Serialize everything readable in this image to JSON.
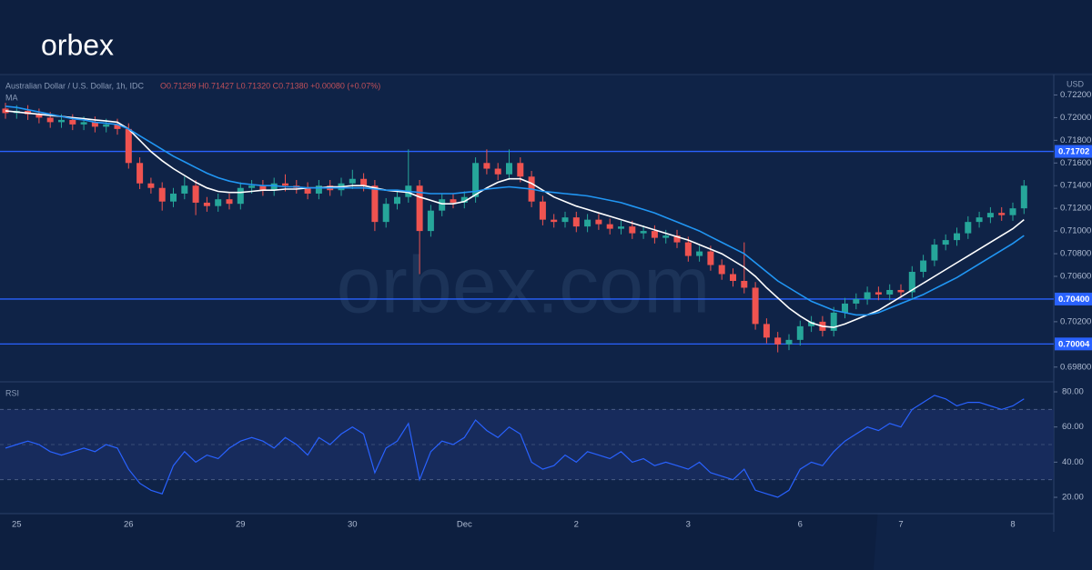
{
  "logo": "orbex",
  "watermark": "orbex.com",
  "chart_data": [
    {
      "type": "candlestick",
      "title": "Australian Dollar / U.S. Dollar, 1h, IDC",
      "ohlc_text": "O0.71299 H0.71427 L0.71320 C0.71380 +0.00080 (+0.07%)",
      "ma_label": "MA",
      "currency": "USD",
      "up_color": "#26a69a",
      "down_color": "#ef5350",
      "categories": [
        null,
        "25",
        null,
        null,
        null,
        null,
        null,
        null,
        null,
        null,
        null,
        "26",
        null,
        null,
        null,
        null,
        null,
        null,
        null,
        null,
        null,
        "29",
        null,
        null,
        null,
        null,
        null,
        null,
        null,
        null,
        null,
        "30",
        null,
        null,
        null,
        null,
        null,
        null,
        null,
        null,
        null,
        "Dec",
        null,
        null,
        null,
        null,
        null,
        null,
        null,
        null,
        null,
        "2",
        null,
        null,
        null,
        null,
        null,
        null,
        null,
        null,
        null,
        "3",
        null,
        null,
        null,
        null,
        null,
        null,
        null,
        null,
        null,
        "6",
        null,
        null,
        null,
        null,
        null,
        null,
        null,
        null,
        "7",
        null,
        null,
        null,
        null,
        null,
        null,
        null,
        null,
        null,
        "8",
        null
      ],
      "open": [
        0.7208,
        0.7204,
        0.7206,
        0.7203,
        0.72,
        0.7196,
        0.7198,
        0.7194,
        0.7196,
        0.7192,
        0.7194,
        0.719,
        0.716,
        0.7142,
        0.7138,
        0.7126,
        0.7133,
        0.714,
        0.7125,
        0.7122,
        0.7128,
        0.7124,
        0.7138,
        0.714,
        0.7136,
        0.7142,
        0.714,
        0.7138,
        0.7133,
        0.714,
        0.7136,
        0.7142,
        0.7146,
        0.714,
        0.7108,
        0.7124,
        0.713,
        0.714,
        0.71,
        0.7118,
        0.7128,
        0.7125,
        0.713,
        0.716,
        0.7155,
        0.715,
        0.716,
        0.7148,
        0.7126,
        0.711,
        0.7108,
        0.7112,
        0.7104,
        0.711,
        0.7106,
        0.7102,
        0.7104,
        0.7098,
        0.71,
        0.7094,
        0.7096,
        0.709,
        0.7078,
        0.7082,
        0.707,
        0.7062,
        0.7056,
        0.705,
        0.7018,
        0.7006,
        0.7,
        0.7004,
        0.7016,
        0.702,
        0.7012,
        0.7028,
        0.7036,
        0.704,
        0.7046,
        0.7044,
        0.7048,
        0.7046,
        0.7064,
        0.7074,
        0.7088,
        0.7092,
        0.7098,
        0.7108,
        0.7112,
        0.7116,
        0.7114,
        0.712
      ],
      "high": [
        0.7213,
        0.7211,
        0.7211,
        0.7208,
        0.7205,
        0.7203,
        0.7203,
        0.7201,
        0.7201,
        0.7199,
        0.7199,
        0.7195,
        0.7165,
        0.7147,
        0.7143,
        0.7138,
        0.7148,
        0.7145,
        0.713,
        0.7133,
        0.7133,
        0.7143,
        0.7145,
        0.7145,
        0.7147,
        0.715,
        0.7145,
        0.7143,
        0.7145,
        0.7145,
        0.7147,
        0.7154,
        0.7151,
        0.7145,
        0.7129,
        0.7135,
        0.7172,
        0.7145,
        0.7123,
        0.7133,
        0.7133,
        0.7135,
        0.7165,
        0.7172,
        0.716,
        0.7172,
        0.7165,
        0.7153,
        0.7131,
        0.7115,
        0.7117,
        0.7117,
        0.7115,
        0.7115,
        0.7111,
        0.7109,
        0.7109,
        0.7105,
        0.7105,
        0.7101,
        0.7101,
        0.7095,
        0.7087,
        0.7087,
        0.7075,
        0.7067,
        0.709,
        0.7055,
        0.7023,
        0.7011,
        0.7009,
        0.7021,
        0.7025,
        0.7025,
        0.7033,
        0.7041,
        0.7045,
        0.7051,
        0.7051,
        0.7053,
        0.7053,
        0.7069,
        0.7079,
        0.7093,
        0.7097,
        0.7103,
        0.7113,
        0.7117,
        0.7121,
        0.7121,
        0.7125,
        0.7145
      ],
      "low": [
        0.7199,
        0.7199,
        0.7198,
        0.7195,
        0.7191,
        0.7191,
        0.7189,
        0.7189,
        0.7187,
        0.7187,
        0.7185,
        0.7155,
        0.7137,
        0.7133,
        0.7118,
        0.7121,
        0.7128,
        0.7114,
        0.7117,
        0.7117,
        0.7119,
        0.7119,
        0.7133,
        0.7131,
        0.7131,
        0.7135,
        0.7133,
        0.7128,
        0.7128,
        0.7131,
        0.7131,
        0.7137,
        0.7135,
        0.71,
        0.7103,
        0.7119,
        0.7125,
        0.7062,
        0.7095,
        0.7113,
        0.712,
        0.712,
        0.7125,
        0.715,
        0.7145,
        0.7145,
        0.7143,
        0.7121,
        0.7105,
        0.7103,
        0.7103,
        0.7099,
        0.7099,
        0.7101,
        0.7097,
        0.7097,
        0.7093,
        0.7093,
        0.7089,
        0.7089,
        0.7085,
        0.7073,
        0.7073,
        0.7065,
        0.7057,
        0.7051,
        0.7045,
        0.7013,
        0.7001,
        0.6993,
        0.6995,
        0.6999,
        0.7011,
        0.7007,
        0.7007,
        0.7023,
        0.7031,
        0.7035,
        0.7039,
        0.7039,
        0.7041,
        0.7041,
        0.7059,
        0.7069,
        0.7083,
        0.7087,
        0.7093,
        0.7103,
        0.7107,
        0.7109,
        0.7109,
        0.7115
      ],
      "close": [
        0.7204,
        0.7206,
        0.7203,
        0.72,
        0.7196,
        0.7198,
        0.7194,
        0.7196,
        0.7192,
        0.7194,
        0.719,
        0.716,
        0.7142,
        0.7138,
        0.7126,
        0.7133,
        0.714,
        0.7125,
        0.7122,
        0.7128,
        0.7124,
        0.7138,
        0.714,
        0.7136,
        0.7142,
        0.714,
        0.7138,
        0.7133,
        0.714,
        0.7136,
        0.7142,
        0.7146,
        0.714,
        0.7108,
        0.7124,
        0.713,
        0.714,
        0.71,
        0.7118,
        0.7128,
        0.7125,
        0.713,
        0.716,
        0.7155,
        0.715,
        0.716,
        0.7148,
        0.7126,
        0.711,
        0.7108,
        0.7112,
        0.7104,
        0.711,
        0.7106,
        0.7102,
        0.7104,
        0.7098,
        0.71,
        0.7094,
        0.7096,
        0.709,
        0.7078,
        0.7082,
        0.707,
        0.7062,
        0.7056,
        0.705,
        0.7018,
        0.7006,
        0.7,
        0.7004,
        0.7016,
        0.702,
        0.7012,
        0.7028,
        0.7036,
        0.704,
        0.7046,
        0.7044,
        0.7048,
        0.7046,
        0.7064,
        0.7074,
        0.7088,
        0.7092,
        0.7098,
        0.7108,
        0.7112,
        0.7116,
        0.7114,
        0.712,
        0.714
      ],
      "series": [
        {
          "color": "#ffffff",
          "values": [
            0.7206,
            0.7205,
            0.7204,
            0.7203,
            0.7202,
            0.7201,
            0.72,
            0.7199,
            0.7198,
            0.7197,
            0.7196,
            0.719,
            0.718,
            0.717,
            0.7162,
            0.7155,
            0.7149,
            0.7143,
            0.7138,
            0.7135,
            0.7134,
            0.7134,
            0.7135,
            0.7136,
            0.7136,
            0.7137,
            0.7137,
            0.7138,
            0.7138,
            0.7139,
            0.7139,
            0.714,
            0.714,
            0.7138,
            0.7136,
            0.7135,
            0.7134,
            0.713,
            0.7127,
            0.7124,
            0.7124,
            0.7126,
            0.7132,
            0.7138,
            0.7143,
            0.7146,
            0.7146,
            0.7142,
            0.7136,
            0.713,
            0.7126,
            0.7122,
            0.7119,
            0.7116,
            0.7113,
            0.711,
            0.7107,
            0.7104,
            0.7101,
            0.7098,
            0.7095,
            0.7092,
            0.7088,
            0.7084,
            0.708,
            0.7074,
            0.7068,
            0.706,
            0.705,
            0.7041,
            0.7032,
            0.7025,
            0.7019,
            0.7016,
            0.7015,
            0.7018,
            0.7022,
            0.7026,
            0.703,
            0.7036,
            0.7042,
            0.7048,
            0.7054,
            0.706,
            0.7066,
            0.7072,
            0.7078,
            0.7084,
            0.709,
            0.7096,
            0.7102,
            0.711
          ]
        },
        {
          "color": "#2196f3",
          "values": [
            0.721,
            0.7209,
            0.7207,
            0.7205,
            0.7203,
            0.7201,
            0.7199,
            0.7198,
            0.7196,
            0.7195,
            0.7194,
            0.719,
            0.7184,
            0.7178,
            0.7172,
            0.7166,
            0.7161,
            0.7156,
            0.7151,
            0.7147,
            0.7144,
            0.7142,
            0.7141,
            0.714,
            0.714,
            0.7139,
            0.7139,
            0.7138,
            0.7138,
            0.7138,
            0.7138,
            0.7138,
            0.7138,
            0.7137,
            0.7136,
            0.7136,
            0.7135,
            0.7134,
            0.7133,
            0.7133,
            0.7133,
            0.7134,
            0.7135,
            0.7137,
            0.7138,
            0.7139,
            0.7138,
            0.7137,
            0.7135,
            0.7134,
            0.7133,
            0.7132,
            0.7131,
            0.7129,
            0.7127,
            0.7125,
            0.7122,
            0.7119,
            0.7116,
            0.7112,
            0.7108,
            0.7104,
            0.71,
            0.7095,
            0.709,
            0.7085,
            0.708,
            0.7072,
            0.7064,
            0.7056,
            0.705,
            0.7044,
            0.7038,
            0.7034,
            0.703,
            0.7028,
            0.7026,
            0.7026,
            0.7028,
            0.7032,
            0.7036,
            0.704,
            0.7044,
            0.7049,
            0.7054,
            0.7059,
            0.7065,
            0.7071,
            0.7077,
            0.7083,
            0.7089,
            0.7096
          ]
        }
      ],
      "levels": {
        "color": "#2962ff",
        "lines": [
          {
            "value": 0.71702,
            "label": "0.71702"
          },
          {
            "value": 0.704,
            "label": "0.70400"
          },
          {
            "value": 0.70004,
            "label": "0.70004"
          }
        ]
      },
      "ylim": [
        0.6967,
        0.7238
      ],
      "yticks": [
        {
          "value": 0.722,
          "label": "0.72200"
        },
        {
          "value": 0.72,
          "label": "0.72000"
        },
        {
          "value": 0.718,
          "label": "0.71800"
        },
        {
          "value": 0.716,
          "label": "0.71600"
        },
        {
          "value": 0.714,
          "label": "0.71400"
        },
        {
          "value": 0.712,
          "label": "0.71200"
        },
        {
          "value": 0.71,
          "label": "0.71000"
        },
        {
          "value": 0.708,
          "label": "0.70800"
        },
        {
          "value": 0.706,
          "label": "0.70600"
        },
        {
          "value": 0.702,
          "label": "0.70200"
        },
        {
          "value": 0.698,
          "label": "0.69800"
        }
      ],
      "grid": false
    },
    {
      "type": "line",
      "title": "RSI",
      "color": "#2962ff",
      "values": [
        48,
        50,
        52,
        50,
        46,
        44,
        46,
        48,
        46,
        50,
        48,
        36,
        28,
        24,
        22,
        38,
        46,
        40,
        44,
        42,
        48,
        52,
        54,
        52,
        48,
        54,
        50,
        44,
        54,
        50,
        56,
        60,
        56,
        34,
        48,
        52,
        62,
        30,
        46,
        52,
        50,
        54,
        64,
        58,
        54,
        60,
        56,
        40,
        36,
        38,
        44,
        40,
        46,
        44,
        42,
        46,
        40,
        42,
        38,
        40,
        38,
        36,
        40,
        34,
        32,
        30,
        36,
        24,
        22,
        20,
        24,
        36,
        40,
        38,
        46,
        52,
        56,
        60,
        58,
        62,
        60,
        70,
        74,
        78,
        76,
        72,
        74,
        74,
        72,
        70,
        72,
        76
      ],
      "band": [
        30,
        70
      ],
      "midline": 50,
      "ylim": [
        10.7,
        85.7
      ],
      "yticks": [
        {
          "value": 80,
          "label": "80.00"
        },
        {
          "value": 60,
          "label": "60.00"
        },
        {
          "value": 40,
          "label": "40.00"
        },
        {
          "value": 20,
          "label": "20.00"
        }
      ]
    }
  ]
}
